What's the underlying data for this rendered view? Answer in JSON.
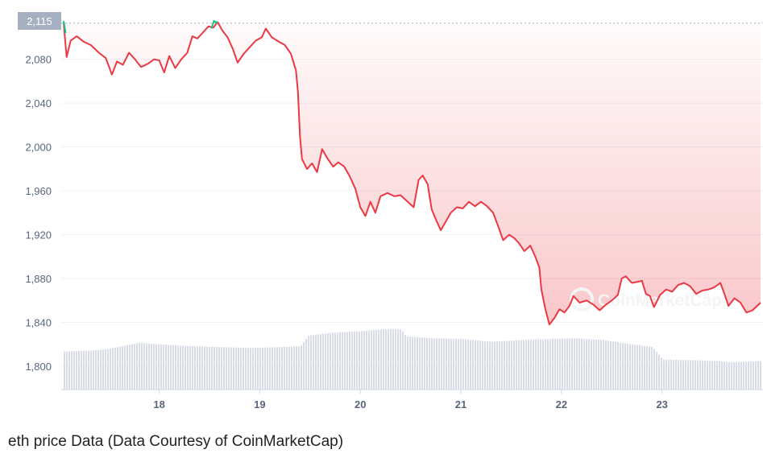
{
  "caption": "eth price Data (Data Courtesy of CoinMarketCap)",
  "watermark": "CoinMarketCap",
  "current_price_tag": "2,115",
  "colors": {
    "price_line": "#ea3943",
    "price_line_up": "#16c784",
    "fill_top": "#ea3943",
    "volume": "#d9dde8",
    "grid": "#eff2f5",
    "tick": "#58667e",
    "tag_bg": "#a6b0c3"
  },
  "chart_data": {
    "type": "line",
    "title": "",
    "xlabel": "",
    "ylabel": "",
    "x_ticks": [
      "18",
      "19",
      "20",
      "21",
      "22",
      "23"
    ],
    "y_ticks": [
      "1,800",
      "1,840",
      "1,880",
      "1,920",
      "1,960",
      "2,000",
      "2,040",
      "2,080"
    ],
    "ylim": [
      1780,
      2115
    ],
    "xlim_day": [
      17.05,
      23.98
    ],
    "grid": "horizontal",
    "series": [
      {
        "values": [
          [
            17.05,
            2113
          ],
          [
            17.08,
            2082
          ],
          [
            17.12,
            2097
          ],
          [
            17.18,
            2101
          ],
          [
            17.25,
            2096
          ],
          [
            17.32,
            2093
          ],
          [
            17.4,
            2086
          ],
          [
            17.47,
            2081
          ],
          [
            17.53,
            2066
          ],
          [
            17.58,
            2078
          ],
          [
            17.64,
            2075
          ],
          [
            17.7,
            2086
          ],
          [
            17.76,
            2080
          ],
          [
            17.82,
            2073
          ],
          [
            17.89,
            2076
          ],
          [
            17.95,
            2080
          ],
          [
            18.0,
            2079
          ],
          [
            18.05,
            2068
          ],
          [
            18.1,
            2083
          ],
          [
            18.16,
            2072
          ],
          [
            18.22,
            2080
          ],
          [
            18.28,
            2086
          ],
          [
            18.33,
            2101
          ],
          [
            18.38,
            2099
          ],
          [
            18.43,
            2104
          ],
          [
            18.49,
            2110
          ],
          [
            18.54,
            2109
          ],
          [
            18.58,
            2114
          ],
          [
            18.63,
            2106
          ],
          [
            18.68,
            2100
          ],
          [
            18.73,
            2090
          ],
          [
            18.78,
            2077
          ],
          [
            18.84,
            2085
          ],
          [
            18.9,
            2091
          ],
          [
            18.96,
            2097
          ],
          [
            19.02,
            2100
          ],
          [
            19.06,
            2108
          ],
          [
            19.12,
            2100
          ],
          [
            19.19,
            2096
          ],
          [
            19.25,
            2093
          ],
          [
            19.31,
            2085
          ],
          [
            19.36,
            2070
          ],
          [
            19.38,
            2050
          ],
          [
            19.4,
            2010
          ],
          [
            19.42,
            1989
          ],
          [
            19.47,
            1980
          ],
          [
            19.52,
            1985
          ],
          [
            19.57,
            1977
          ],
          [
            19.62,
            1998
          ],
          [
            19.67,
            1990
          ],
          [
            19.73,
            1982
          ],
          [
            19.78,
            1986
          ],
          [
            19.84,
            1982
          ],
          [
            19.89,
            1974
          ],
          [
            19.95,
            1962
          ],
          [
            20.0,
            1945
          ],
          [
            20.05,
            1937
          ],
          [
            20.1,
            1950
          ],
          [
            20.15,
            1940
          ],
          [
            20.2,
            1955
          ],
          [
            20.27,
            1958
          ],
          [
            20.34,
            1955
          ],
          [
            20.4,
            1956
          ],
          [
            20.46,
            1951
          ],
          [
            20.53,
            1945
          ],
          [
            20.58,
            1970
          ],
          [
            20.62,
            1974
          ],
          [
            20.67,
            1966
          ],
          [
            20.71,
            1943
          ],
          [
            20.76,
            1932
          ],
          [
            20.8,
            1924
          ],
          [
            20.85,
            1932
          ],
          [
            20.9,
            1940
          ],
          [
            20.96,
            1945
          ],
          [
            21.02,
            1944
          ],
          [
            21.08,
            1950
          ],
          [
            21.14,
            1946
          ],
          [
            21.2,
            1950
          ],
          [
            21.26,
            1946
          ],
          [
            21.32,
            1940
          ],
          [
            21.37,
            1928
          ],
          [
            21.42,
            1915
          ],
          [
            21.48,
            1920
          ],
          [
            21.53,
            1917
          ],
          [
            21.58,
            1912
          ],
          [
            21.63,
            1905
          ],
          [
            21.69,
            1910
          ],
          [
            21.74,
            1900
          ],
          [
            21.78,
            1890
          ],
          [
            21.8,
            1870
          ],
          [
            21.84,
            1852
          ],
          [
            21.88,
            1838
          ],
          [
            21.93,
            1844
          ],
          [
            21.98,
            1852
          ],
          [
            22.03,
            1849
          ],
          [
            22.08,
            1855
          ],
          [
            22.12,
            1864
          ],
          [
            22.18,
            1858
          ],
          [
            22.25,
            1860
          ],
          [
            22.32,
            1856
          ],
          [
            22.38,
            1851
          ],
          [
            22.44,
            1856
          ],
          [
            22.5,
            1860
          ],
          [
            22.56,
            1865
          ],
          [
            22.6,
            1880
          ],
          [
            22.64,
            1882
          ],
          [
            22.7,
            1876
          ],
          [
            22.76,
            1877
          ],
          [
            22.8,
            1878
          ],
          [
            22.84,
            1866
          ],
          [
            22.88,
            1864
          ],
          [
            22.92,
            1854
          ],
          [
            22.98,
            1865
          ],
          [
            23.04,
            1870
          ],
          [
            23.1,
            1868
          ],
          [
            23.16,
            1874
          ],
          [
            23.22,
            1876
          ],
          [
            23.28,
            1873
          ],
          [
            23.34,
            1866
          ],
          [
            23.4,
            1869
          ],
          [
            23.46,
            1870
          ],
          [
            23.52,
            1872
          ],
          [
            23.58,
            1876
          ],
          [
            23.62,
            1866
          ],
          [
            23.66,
            1855
          ],
          [
            23.72,
            1862
          ],
          [
            23.78,
            1858
          ],
          [
            23.84,
            1849
          ],
          [
            23.9,
            1851
          ],
          [
            23.98,
            1858
          ]
        ]
      }
    ],
    "volume": {
      "values": [
        [
          17.05,
          0.43
        ],
        [
          17.3,
          0.44
        ],
        [
          17.5,
          0.46
        ],
        [
          17.8,
          0.53
        ],
        [
          18.0,
          0.51
        ],
        [
          18.3,
          0.49
        ],
        [
          18.6,
          0.48
        ],
        [
          18.9,
          0.47
        ],
        [
          19.2,
          0.48
        ],
        [
          19.4,
          0.49
        ],
        [
          19.48,
          0.61
        ],
        [
          19.7,
          0.64
        ],
        [
          20.0,
          0.66
        ],
        [
          20.2,
          0.68
        ],
        [
          20.4,
          0.68
        ],
        [
          20.45,
          0.6
        ],
        [
          20.7,
          0.58
        ],
        [
          21.0,
          0.57
        ],
        [
          21.3,
          0.54
        ],
        [
          21.6,
          0.56
        ],
        [
          21.9,
          0.57
        ],
        [
          22.1,
          0.58
        ],
        [
          22.4,
          0.56
        ],
        [
          22.7,
          0.51
        ],
        [
          22.9,
          0.48
        ],
        [
          23.0,
          0.34
        ],
        [
          23.4,
          0.33
        ],
        [
          23.7,
          0.31
        ],
        [
          23.98,
          0.32
        ]
      ]
    }
  }
}
